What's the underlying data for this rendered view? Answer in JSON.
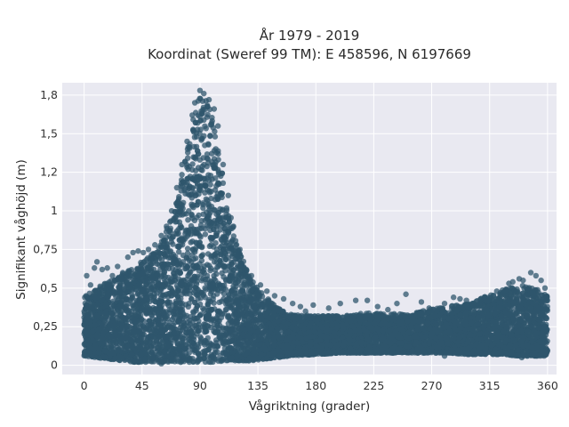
{
  "chart_data": {
    "type": "scatter",
    "title_line1": "År 1979 - 2019",
    "title_line2": "Koordinat (Sweref 99 TM): E 458596, N 6197669",
    "xlabel": "Vågriktning (grader)",
    "ylabel": "Signifikant våghöjd (m)",
    "xlim": [
      -17,
      367
    ],
    "ylim": [
      -0.06,
      1.83
    ],
    "xticks": [
      0,
      45,
      90,
      135,
      180,
      225,
      270,
      315,
      360
    ],
    "xtick_labels": [
      "0",
      "45",
      "90",
      "135",
      "180",
      "225",
      "270",
      "315",
      "360"
    ],
    "yticks": [
      0,
      0.25,
      0.5,
      0.75,
      1,
      1.25,
      1.5,
      1.75
    ],
    "ytick_labels": [
      "0",
      "0,25",
      "0,5",
      "0,75",
      "1",
      "1,2",
      "1,5",
      "1,8"
    ],
    "grid": true,
    "marker_color": "#2f566c",
    "plot_background": "#e9e9f1",
    "envelope": {
      "direction": [
        0,
        10,
        20,
        30,
        40,
        50,
        60,
        70,
        80,
        88,
        95,
        100,
        110,
        120,
        130,
        140,
        150,
        160,
        180,
        200,
        220,
        250,
        280,
        300,
        320,
        340,
        350,
        360
      ],
      "max_height": [
        0.45,
        0.5,
        0.55,
        0.6,
        0.65,
        0.7,
        0.8,
        1.0,
        1.4,
        1.75,
        1.72,
        1.62,
        1.1,
        0.75,
        0.55,
        0.45,
        0.38,
        0.33,
        0.32,
        0.32,
        0.34,
        0.33,
        0.38,
        0.4,
        0.48,
        0.52,
        0.5,
        0.45
      ],
      "min_height": [
        0.06,
        0.05,
        0.04,
        0.03,
        0.02,
        0.02,
        0.02,
        0.02,
        0.02,
        0.02,
        0.02,
        0.02,
        0.03,
        0.03,
        0.03,
        0.04,
        0.05,
        0.06,
        0.07,
        0.08,
        0.08,
        0.08,
        0.08,
        0.07,
        0.07,
        0.06,
        0.06,
        0.06
      ]
    },
    "outliers": [
      {
        "x": 2,
        "y": 0.58
      },
      {
        "x": 5,
        "y": 0.52
      },
      {
        "x": 8,
        "y": 0.63
      },
      {
        "x": 10,
        "y": 0.67
      },
      {
        "x": 14,
        "y": 0.62
      },
      {
        "x": 18,
        "y": 0.63
      },
      {
        "x": 22,
        "y": 0.58
      },
      {
        "x": 26,
        "y": 0.64
      },
      {
        "x": 30,
        "y": 0.6
      },
      {
        "x": 34,
        "y": 0.7
      },
      {
        "x": 38,
        "y": 0.73
      },
      {
        "x": 42,
        "y": 0.74
      },
      {
        "x": 46,
        "y": 0.73
      },
      {
        "x": 50,
        "y": 0.75
      },
      {
        "x": 55,
        "y": 0.78
      },
      {
        "x": 60,
        "y": 0.84
      },
      {
        "x": 64,
        "y": 0.9
      },
      {
        "x": 68,
        "y": 1.0
      },
      {
        "x": 72,
        "y": 1.15
      },
      {
        "x": 76,
        "y": 1.3
      },
      {
        "x": 80,
        "y": 1.45
      },
      {
        "x": 84,
        "y": 1.62
      },
      {
        "x": 86,
        "y": 1.7
      },
      {
        "x": 90,
        "y": 1.78
      },
      {
        "x": 93,
        "y": 1.76
      },
      {
        "x": 97,
        "y": 1.72
      },
      {
        "x": 101,
        "y": 1.66
      },
      {
        "x": 104,
        "y": 1.55
      },
      {
        "x": 108,
        "y": 1.3
      },
      {
        "x": 112,
        "y": 1.1
      },
      {
        "x": 116,
        "y": 0.9
      },
      {
        "x": 121,
        "y": 0.75
      },
      {
        "x": 126,
        "y": 0.62
      },
      {
        "x": 130,
        "y": 0.58
      },
      {
        "x": 137,
        "y": 0.52
      },
      {
        "x": 142,
        "y": 0.48
      },
      {
        "x": 148,
        "y": 0.45
      },
      {
        "x": 155,
        "y": 0.43
      },
      {
        "x": 162,
        "y": 0.4
      },
      {
        "x": 168,
        "y": 0.38
      },
      {
        "x": 172,
        "y": 0.35
      },
      {
        "x": 178,
        "y": 0.39
      },
      {
        "x": 190,
        "y": 0.37
      },
      {
        "x": 199,
        "y": 0.4
      },
      {
        "x": 211,
        "y": 0.42
      },
      {
        "x": 220,
        "y": 0.42
      },
      {
        "x": 228,
        "y": 0.38
      },
      {
        "x": 236,
        "y": 0.36
      },
      {
        "x": 243,
        "y": 0.4
      },
      {
        "x": 250,
        "y": 0.46
      },
      {
        "x": 262,
        "y": 0.41
      },
      {
        "x": 268,
        "y": 0.37
      },
      {
        "x": 280,
        "y": 0.4
      },
      {
        "x": 287,
        "y": 0.44
      },
      {
        "x": 292,
        "y": 0.43
      },
      {
        "x": 297,
        "y": 0.42
      },
      {
        "x": 304,
        "y": 0.38
      },
      {
        "x": 312,
        "y": 0.36
      },
      {
        "x": 320,
        "y": 0.43
      },
      {
        "x": 325,
        "y": 0.47
      },
      {
        "x": 330,
        "y": 0.53
      },
      {
        "x": 333,
        "y": 0.54
      },
      {
        "x": 338,
        "y": 0.56
      },
      {
        "x": 341,
        "y": 0.55
      },
      {
        "x": 347,
        "y": 0.6
      },
      {
        "x": 351,
        "y": 0.58
      },
      {
        "x": 355,
        "y": 0.55
      },
      {
        "x": 358,
        "y": 0.5
      },
      {
        "x": 102,
        "y": 0.1
      },
      {
        "x": 145,
        "y": 0.07
      },
      {
        "x": 190,
        "y": 0.08
      },
      {
        "x": 280,
        "y": 0.06
      },
      {
        "x": 340,
        "y": 0.05
      },
      {
        "x": 60,
        "y": 0.01
      },
      {
        "x": 75,
        "y": 0.02
      }
    ]
  }
}
